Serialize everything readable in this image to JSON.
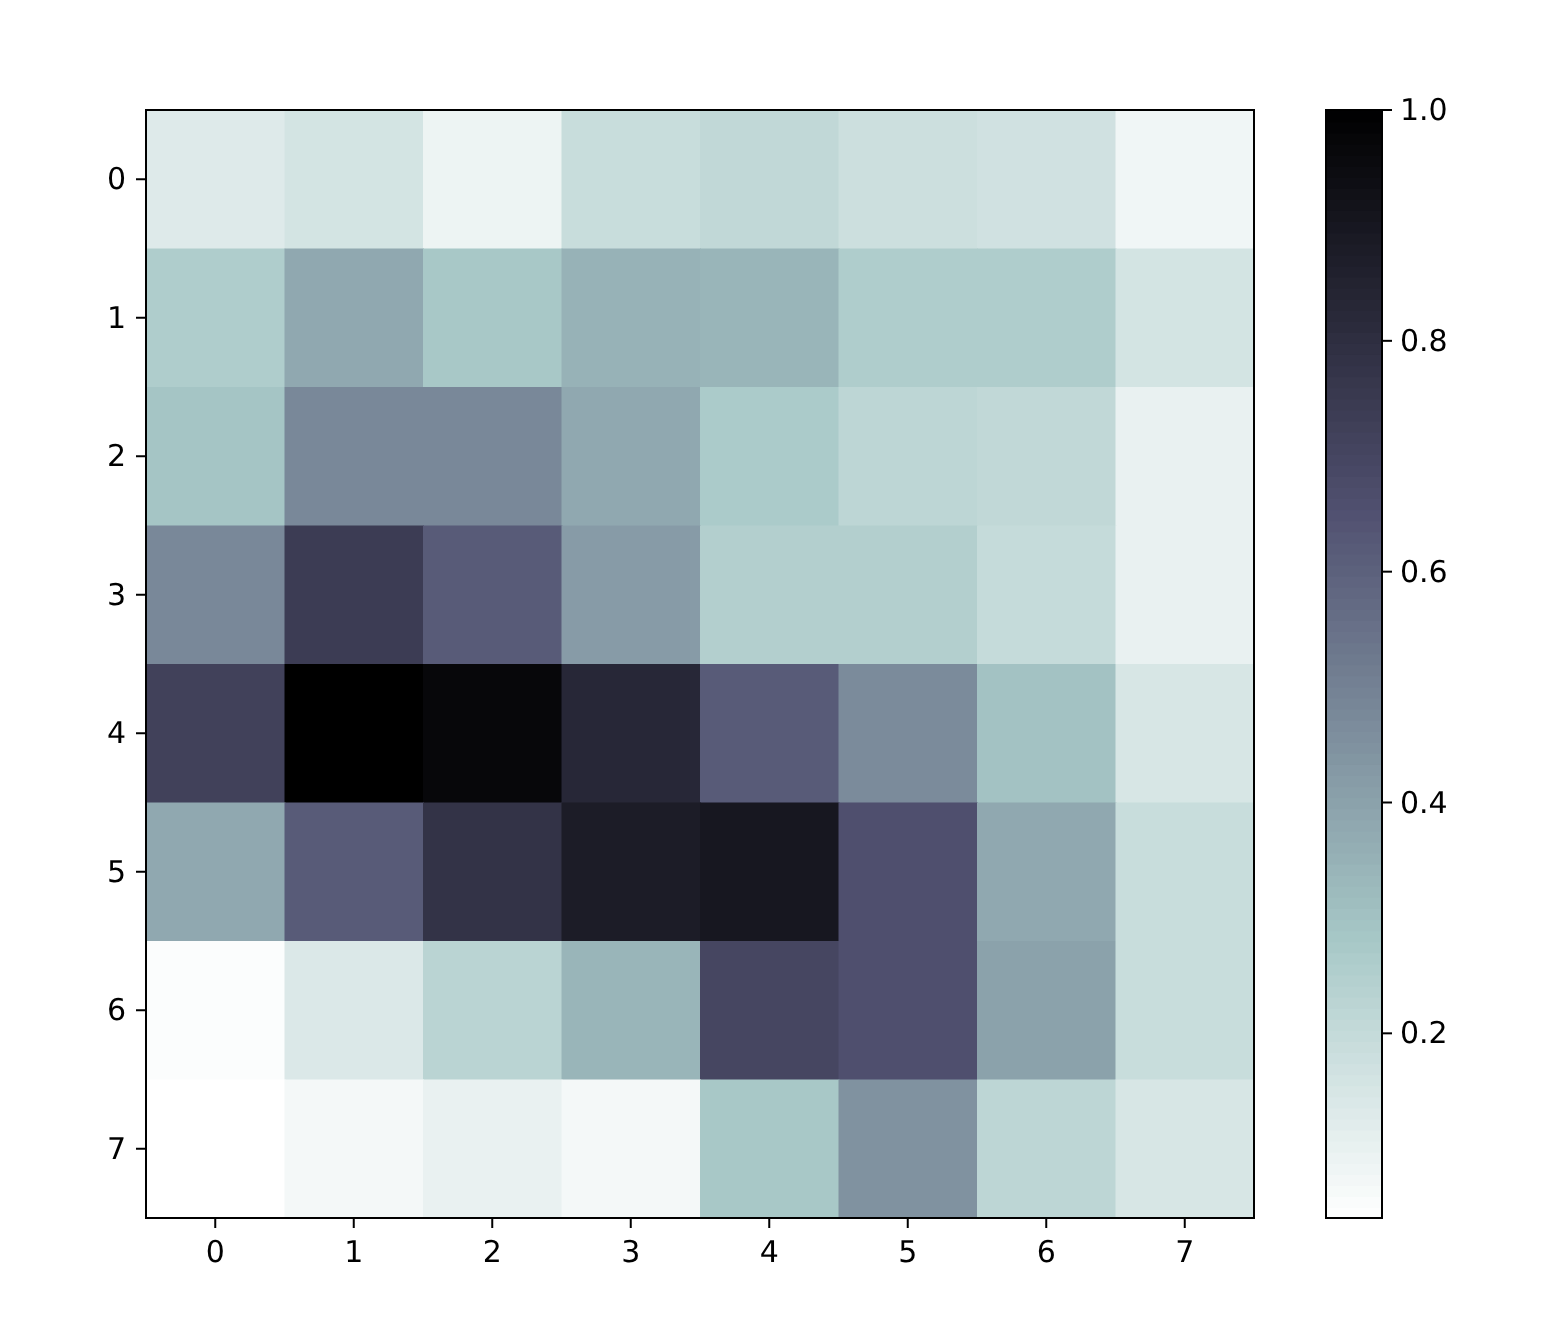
{
  "chart_data": {
    "type": "heatmap",
    "categories": [
      "0",
      "1",
      "2",
      "3",
      "4",
      "5",
      "6",
      "7"
    ],
    "y_categories": [
      "0",
      "1",
      "2",
      "3",
      "4",
      "5",
      "6",
      "7"
    ],
    "cells": [
      [
        0.13,
        0.16,
        0.09,
        0.19,
        0.21,
        0.18,
        0.17,
        0.08
      ],
      [
        0.26,
        0.38,
        0.28,
        0.35,
        0.34,
        0.26,
        0.26,
        0.16
      ],
      [
        0.29,
        0.48,
        0.48,
        0.38,
        0.27,
        0.22,
        0.21,
        0.1
      ],
      [
        0.48,
        0.74,
        0.62,
        0.42,
        0.25,
        0.25,
        0.2,
        0.1
      ],
      [
        0.72,
        1.0,
        0.97,
        0.83,
        0.62,
        0.47,
        0.3,
        0.15
      ],
      [
        0.38,
        0.62,
        0.78,
        0.88,
        0.9,
        0.66,
        0.38,
        0.19
      ],
      [
        0.05,
        0.14,
        0.23,
        0.34,
        0.7,
        0.66,
        0.4,
        0.19
      ],
      [
        0.04,
        0.07,
        0.1,
        0.07,
        0.28,
        0.45,
        0.22,
        0.15
      ]
    ],
    "clim": [
      0.04,
      1.0
    ],
    "cticks": [
      {
        "value": 0.2,
        "label": "0.2"
      },
      {
        "value": 0.4,
        "label": "0.4"
      },
      {
        "value": 0.6,
        "label": "0.6"
      },
      {
        "value": 0.8,
        "label": "0.8"
      },
      {
        "value": 1.0,
        "label": "1.0"
      }
    ]
  }
}
